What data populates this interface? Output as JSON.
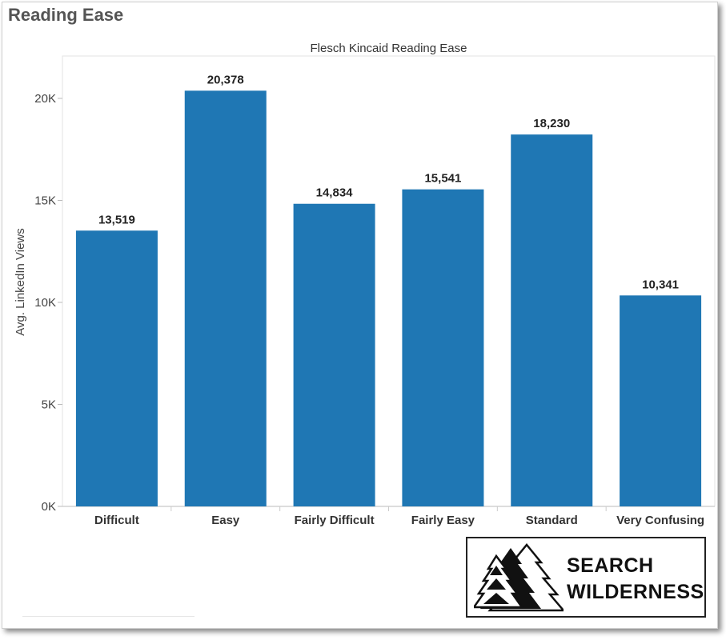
{
  "dashboard": {
    "title": "Reading Ease"
  },
  "logo": {
    "line1": "SEARCH",
    "line2": "WILDERNESS",
    "icon": "pine-trees-icon"
  },
  "colors": {
    "bar": "#1f77b4",
    "axis": "#cccccc",
    "text": "#333333"
  },
  "chart_data": {
    "type": "bar",
    "title": "Flesch Kincaid Reading Ease",
    "xlabel": "",
    "ylabel": "Avg. LinkedIn Views",
    "categories": [
      "Difficult",
      "Easy",
      "Fairly Difficult",
      "Fairly Easy",
      "Standard",
      "Very Confusing"
    ],
    "values": [
      13519,
      20378,
      14834,
      15541,
      18230,
      10341
    ],
    "value_labels": [
      "13,519",
      "20,378",
      "14,834",
      "15,541",
      "18,230",
      "10,341"
    ],
    "yticks": [
      0,
      5000,
      10000,
      15000,
      20000
    ],
    "ytick_labels": [
      "0K",
      "5K",
      "10K",
      "15K",
      "20K"
    ],
    "ylim": [
      0,
      22000
    ],
    "grid": false,
    "legend": "none"
  }
}
